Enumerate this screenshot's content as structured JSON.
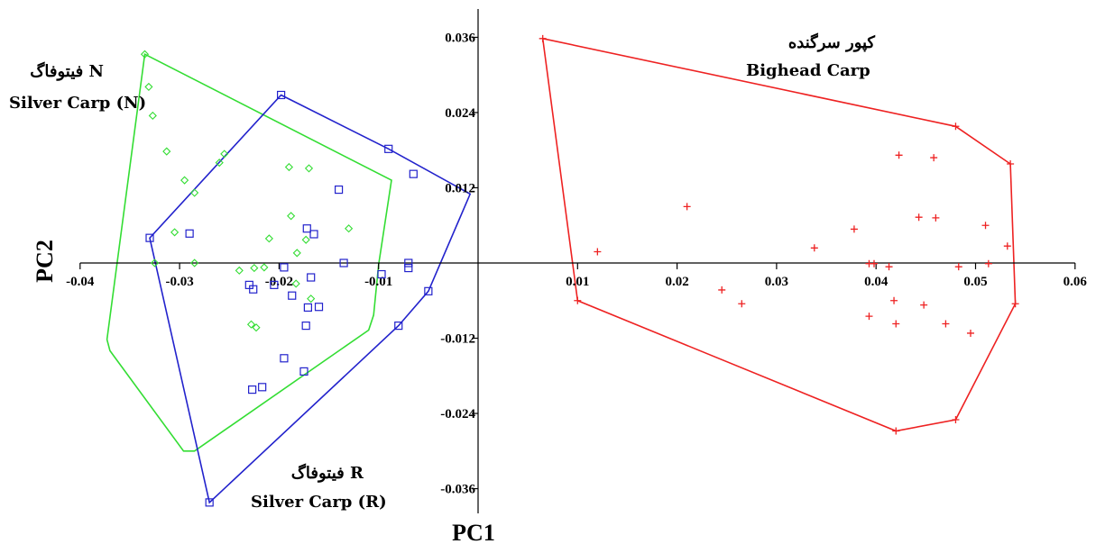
{
  "chart_data": {
    "type": "scatter",
    "xlabel": "PC1",
    "ylabel": "PC2",
    "xlim": [
      -0.04,
      0.06
    ],
    "ylim": [
      -0.04,
      0.04
    ],
    "x_ticks": [
      -0.04,
      -0.03,
      -0.02,
      -0.01,
      0.01,
      0.02,
      0.03,
      0.04,
      0.05,
      0.06
    ],
    "x_tick_labels": [
      "-0.04",
      "-0.03",
      "-0.02",
      "-0.01",
      "0.01",
      "0.02",
      "0.03",
      "0.04",
      "0.05",
      "0.06"
    ],
    "y_ticks": [
      0.036,
      0.024,
      0.012,
      -0.012,
      -0.024,
      -0.036
    ],
    "y_tick_labels": [
      "0.036",
      "0.024",
      "0.012",
      "-0.012",
      "-0.024",
      "-0.036"
    ],
    "grid": false,
    "series": [
      {
        "name": "Silver Carp (N)",
        "label_line1": "فیتوفاگ N",
        "label_line2": "Silver Carp (N)",
        "color": "#33dd33",
        "marker": "diamond",
        "points": [
          [
            -0.0335,
            0.0333
          ],
          [
            -0.0331,
            0.0281
          ],
          [
            -0.0327,
            0.0235
          ],
          [
            -0.0313,
            0.0178
          ],
          [
            -0.0295,
            0.0132
          ],
          [
            -0.0285,
            0.0112
          ],
          [
            -0.0255,
            0.0174
          ],
          [
            -0.0305,
            0.0049
          ],
          [
            -0.026,
            0.016
          ],
          [
            -0.019,
            0.0153
          ],
          [
            -0.017,
            0.0151
          ],
          [
            -0.013,
            0.0055
          ],
          [
            -0.0188,
            0.0075
          ],
          [
            -0.021,
            0.0039
          ],
          [
            -0.0173,
            0.0037
          ],
          [
            -0.0182,
            0.0016
          ],
          [
            -0.0325,
            0.0
          ],
          [
            -0.0285,
            0.0
          ],
          [
            -0.024,
            -0.0012
          ],
          [
            -0.0225,
            -0.0008
          ],
          [
            -0.0215,
            -0.0007
          ],
          [
            -0.0168,
            -0.0057
          ],
          [
            -0.0183,
            -0.0033
          ],
          [
            -0.0228,
            -0.0098
          ],
          [
            -0.0223,
            -0.0103
          ]
        ],
        "hull": [
          [
            -0.0335,
            0.0333
          ],
          [
            -0.0087,
            0.0132
          ],
          [
            -0.01,
            -0.0003
          ],
          [
            -0.0105,
            -0.0083
          ],
          [
            -0.011,
            -0.0107
          ],
          [
            -0.0285,
            -0.03
          ],
          [
            -0.0296,
            -0.03
          ],
          [
            -0.037,
            -0.014
          ],
          [
            -0.0373,
            -0.0122
          ]
        ]
      },
      {
        "name": "Silver Carp (R)",
        "label_line1": "فیتوفاگ R",
        "label_line2": "Silver Carp (R)",
        "color": "#2222cc",
        "marker": "square",
        "points": [
          [
            -0.0198,
            0.0268
          ],
          [
            -0.009,
            0.0182
          ],
          [
            -0.0065,
            0.0142
          ],
          [
            -0.014,
            0.0117
          ],
          [
            -0.0172,
            0.0055
          ],
          [
            -0.0165,
            0.0046
          ],
          [
            -0.029,
            0.0047
          ],
          [
            -0.033,
            0.004
          ],
          [
            -0.0135,
            0.0
          ],
          [
            -0.0195,
            -0.0007
          ],
          [
            -0.0168,
            -0.0023
          ],
          [
            -0.0097,
            -0.0018
          ],
          [
            -0.007,
            -0.0008
          ],
          [
            -0.007,
            0.0
          ],
          [
            -0.023,
            -0.0035
          ],
          [
            -0.0226,
            -0.0042
          ],
          [
            -0.0205,
            -0.0035
          ],
          [
            -0.0187,
            -0.0052
          ],
          [
            -0.016,
            -0.007
          ],
          [
            -0.0171,
            -0.0071
          ],
          [
            -0.0173,
            -0.01
          ],
          [
            -0.0195,
            -0.0152
          ],
          [
            -0.0175,
            -0.0173
          ],
          [
            -0.0227,
            -0.0202
          ],
          [
            -0.0217,
            -0.0198
          ],
          [
            -0.008,
            -0.01
          ],
          [
            -0.005,
            -0.0045
          ],
          [
            -0.027,
            -0.0382
          ]
        ],
        "hull": [
          [
            -0.0198,
            0.0268
          ],
          [
            -0.009,
            0.0182
          ],
          [
            -0.0008,
            0.011
          ],
          [
            -0.005,
            -0.0045
          ],
          [
            -0.008,
            -0.01
          ],
          [
            -0.027,
            -0.0382
          ],
          [
            -0.033,
            0.004
          ]
        ]
      },
      {
        "name": "Bighead Carp",
        "label_line1": "کپور سرگنده",
        "label_line2": "Bighead Carp",
        "color": "#ee2222",
        "marker": "plus",
        "points": [
          [
            0.0065,
            0.0358
          ],
          [
            0.048,
            0.0218
          ],
          [
            0.0535,
            0.0158
          ],
          [
            0.054,
            -0.0065
          ],
          [
            0.048,
            -0.025
          ],
          [
            0.042,
            -0.0268
          ],
          [
            0.01,
            -0.006
          ],
          [
            0.012,
            0.0018
          ],
          [
            0.021,
            0.009
          ],
          [
            0.0423,
            0.0172
          ],
          [
            0.0458,
            0.0168
          ],
          [
            0.0443,
            0.0073
          ],
          [
            0.046,
            0.0072
          ],
          [
            0.051,
            0.006
          ],
          [
            0.0378,
            0.0054
          ],
          [
            0.0338,
            0.0024
          ],
          [
            0.0532,
            0.0027
          ],
          [
            0.0393,
            -0.0001
          ],
          [
            0.0398,
            -0.0001
          ],
          [
            0.0413,
            -0.0006
          ],
          [
            0.0483,
            -0.0006
          ],
          [
            0.0513,
            -0.0001
          ],
          [
            0.0245,
            -0.0043
          ],
          [
            0.0265,
            -0.0065
          ],
          [
            0.0418,
            -0.006
          ],
          [
            0.0448,
            -0.0067
          ],
          [
            0.0393,
            -0.0085
          ],
          [
            0.042,
            -0.0097
          ],
          [
            0.047,
            -0.0097
          ],
          [
            0.0495,
            -0.0112
          ]
        ],
        "hull": [
          [
            0.0065,
            0.0358
          ],
          [
            0.048,
            0.0218
          ],
          [
            0.0535,
            0.0158
          ],
          [
            0.054,
            -0.0065
          ],
          [
            0.048,
            -0.025
          ],
          [
            0.042,
            -0.0268
          ],
          [
            0.01,
            -0.006
          ]
        ]
      }
    ]
  }
}
